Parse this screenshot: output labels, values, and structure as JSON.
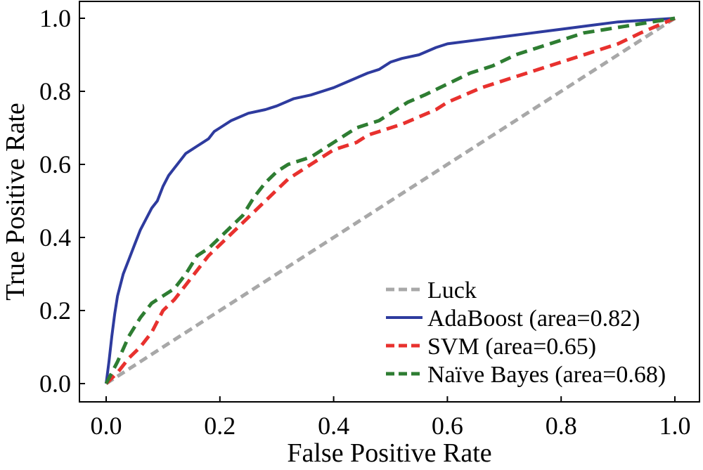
{
  "chart_data": {
    "type": "line",
    "xlabel": "False Positive Rate",
    "ylabel": "True Positive Rate",
    "xlim": [
      0.0,
      1.0
    ],
    "ylim": [
      0.0,
      1.0
    ],
    "xticks": [
      "0.0",
      "0.2",
      "0.4",
      "0.6",
      "0.8",
      "1.0"
    ],
    "yticks": [
      "0.0",
      "0.2",
      "0.4",
      "0.6",
      "0.8",
      "1.0"
    ],
    "grid": false,
    "legend_position": "bottom-right",
    "series": [
      {
        "name": "Luck",
        "color": "#a8a8a8",
        "style": "dashed",
        "x": [
          0.0,
          1.0
        ],
        "y": [
          0.0,
          1.0
        ]
      },
      {
        "name": "AdaBoost (area=0.82)",
        "color": "#2e3b9e",
        "style": "solid",
        "x": [
          0.0,
          0.005,
          0.01,
          0.015,
          0.02,
          0.03,
          0.04,
          0.05,
          0.06,
          0.07,
          0.08,
          0.09,
          0.1,
          0.11,
          0.12,
          0.13,
          0.14,
          0.15,
          0.16,
          0.17,
          0.18,
          0.19,
          0.2,
          0.22,
          0.25,
          0.28,
          0.3,
          0.33,
          0.36,
          0.4,
          0.43,
          0.46,
          0.48,
          0.5,
          0.52,
          0.55,
          0.58,
          0.6,
          0.65,
          0.7,
          0.75,
          0.8,
          0.85,
          0.9,
          0.95,
          1.0
        ],
        "y": [
          0.0,
          0.06,
          0.13,
          0.19,
          0.24,
          0.3,
          0.34,
          0.38,
          0.42,
          0.45,
          0.48,
          0.5,
          0.54,
          0.57,
          0.59,
          0.61,
          0.63,
          0.64,
          0.65,
          0.66,
          0.67,
          0.69,
          0.7,
          0.72,
          0.74,
          0.75,
          0.76,
          0.78,
          0.79,
          0.81,
          0.83,
          0.85,
          0.86,
          0.88,
          0.89,
          0.9,
          0.92,
          0.93,
          0.94,
          0.95,
          0.96,
          0.97,
          0.98,
          0.99,
          0.995,
          1.0
        ]
      },
      {
        "name": "SVM (area=0.65)",
        "color": "#e8312e",
        "style": "dashed",
        "x": [
          0.0,
          0.02,
          0.04,
          0.06,
          0.08,
          0.1,
          0.12,
          0.14,
          0.16,
          0.18,
          0.2,
          0.22,
          0.24,
          0.26,
          0.28,
          0.3,
          0.32,
          0.34,
          0.36,
          0.38,
          0.4,
          0.42,
          0.44,
          0.46,
          0.48,
          0.5,
          0.52,
          0.55,
          0.58,
          0.6,
          0.63,
          0.66,
          0.7,
          0.74,
          0.78,
          0.82,
          0.86,
          0.9,
          0.94,
          0.97,
          1.0
        ],
        "y": [
          0.0,
          0.03,
          0.07,
          0.1,
          0.14,
          0.2,
          0.23,
          0.27,
          0.31,
          0.35,
          0.38,
          0.41,
          0.44,
          0.47,
          0.5,
          0.53,
          0.56,
          0.58,
          0.6,
          0.62,
          0.64,
          0.65,
          0.66,
          0.68,
          0.69,
          0.7,
          0.71,
          0.73,
          0.75,
          0.77,
          0.79,
          0.81,
          0.83,
          0.85,
          0.87,
          0.89,
          0.91,
          0.93,
          0.96,
          0.98,
          1.0
        ]
      },
      {
        "name": "Naïve Bayes (area=0.68)",
        "color": "#2e7d32",
        "style": "dashed",
        "x": [
          0.0,
          0.02,
          0.04,
          0.06,
          0.08,
          0.1,
          0.12,
          0.14,
          0.16,
          0.18,
          0.2,
          0.22,
          0.24,
          0.26,
          0.28,
          0.3,
          0.32,
          0.34,
          0.36,
          0.38,
          0.4,
          0.42,
          0.44,
          0.46,
          0.48,
          0.5,
          0.53,
          0.56,
          0.6,
          0.64,
          0.68,
          0.72,
          0.76,
          0.8,
          0.84,
          0.88,
          0.92,
          0.96,
          1.0
        ],
        "y": [
          0.0,
          0.06,
          0.13,
          0.18,
          0.22,
          0.24,
          0.26,
          0.3,
          0.35,
          0.37,
          0.4,
          0.43,
          0.46,
          0.51,
          0.55,
          0.58,
          0.6,
          0.61,
          0.62,
          0.64,
          0.66,
          0.68,
          0.7,
          0.71,
          0.72,
          0.74,
          0.77,
          0.79,
          0.82,
          0.85,
          0.87,
          0.9,
          0.92,
          0.94,
          0.96,
          0.97,
          0.98,
          0.99,
          1.0
        ]
      }
    ]
  }
}
